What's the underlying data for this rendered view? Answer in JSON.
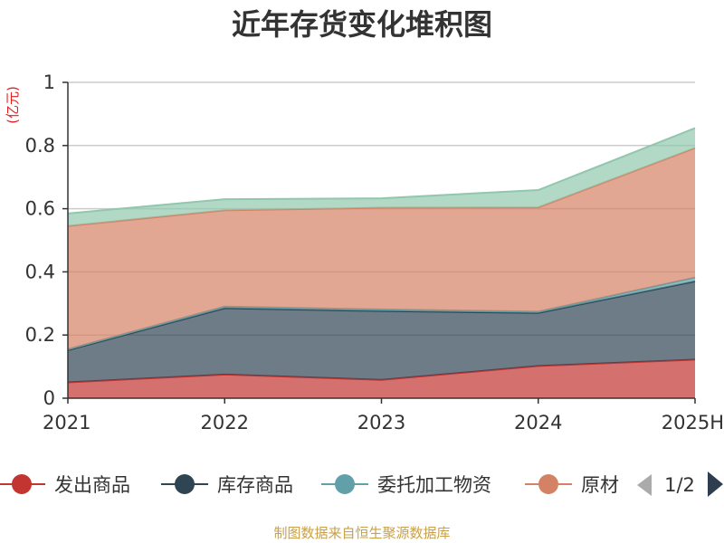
{
  "colors": {
    "title": "#333333",
    "unit": "#e02020",
    "axis": "#333333",
    "grid": "#cccccc",
    "source": "#c8a04a",
    "pager_active": "#2f3e4e",
    "pager_inactive": "#aaaaaa"
  },
  "legend": {
    "page": "1/2",
    "prev_icon": "triangle-left-icon",
    "next_icon": "triangle-right-icon"
  },
  "source_text": "制图数据来自恒生聚源数据库",
  "chart_data": {
    "type": "area",
    "stacked": true,
    "title": "近年存货变化堆积图",
    "ylabel": "(亿元)",
    "xlabel": "",
    "categories": [
      "2021",
      "2022",
      "2023",
      "2024",
      "2025H"
    ],
    "ylim": [
      0,
      1
    ],
    "yticks": [
      0,
      0.2,
      0.4,
      0.6,
      0.8,
      1
    ],
    "ytick_labels": [
      "0",
      "0.2",
      "0.4",
      "0.6",
      "0.8",
      "1"
    ],
    "grid": true,
    "legend_position": "bottom",
    "series": [
      {
        "name": "发出商品",
        "color": "#c23531",
        "values": [
          0.05,
          0.075,
          0.058,
          0.102,
          0.122
        ]
      },
      {
        "name": "库存商品",
        "color": "#2f4554",
        "values": [
          0.102,
          0.21,
          0.218,
          0.168,
          0.248
        ]
      },
      {
        "name": "委托加工物资",
        "color": "#61a0a8",
        "values": [
          0.003,
          0.005,
          0.005,
          0.004,
          0.012
        ]
      },
      {
        "name": "原材料",
        "color": "#d48265",
        "values": [
          0.39,
          0.305,
          0.322,
          0.33,
          0.41
        ]
      },
      {
        "name": "",
        "color": "#91c7ae",
        "values": [
          0.04,
          0.035,
          0.03,
          0.055,
          0.063
        ]
      }
    ]
  }
}
